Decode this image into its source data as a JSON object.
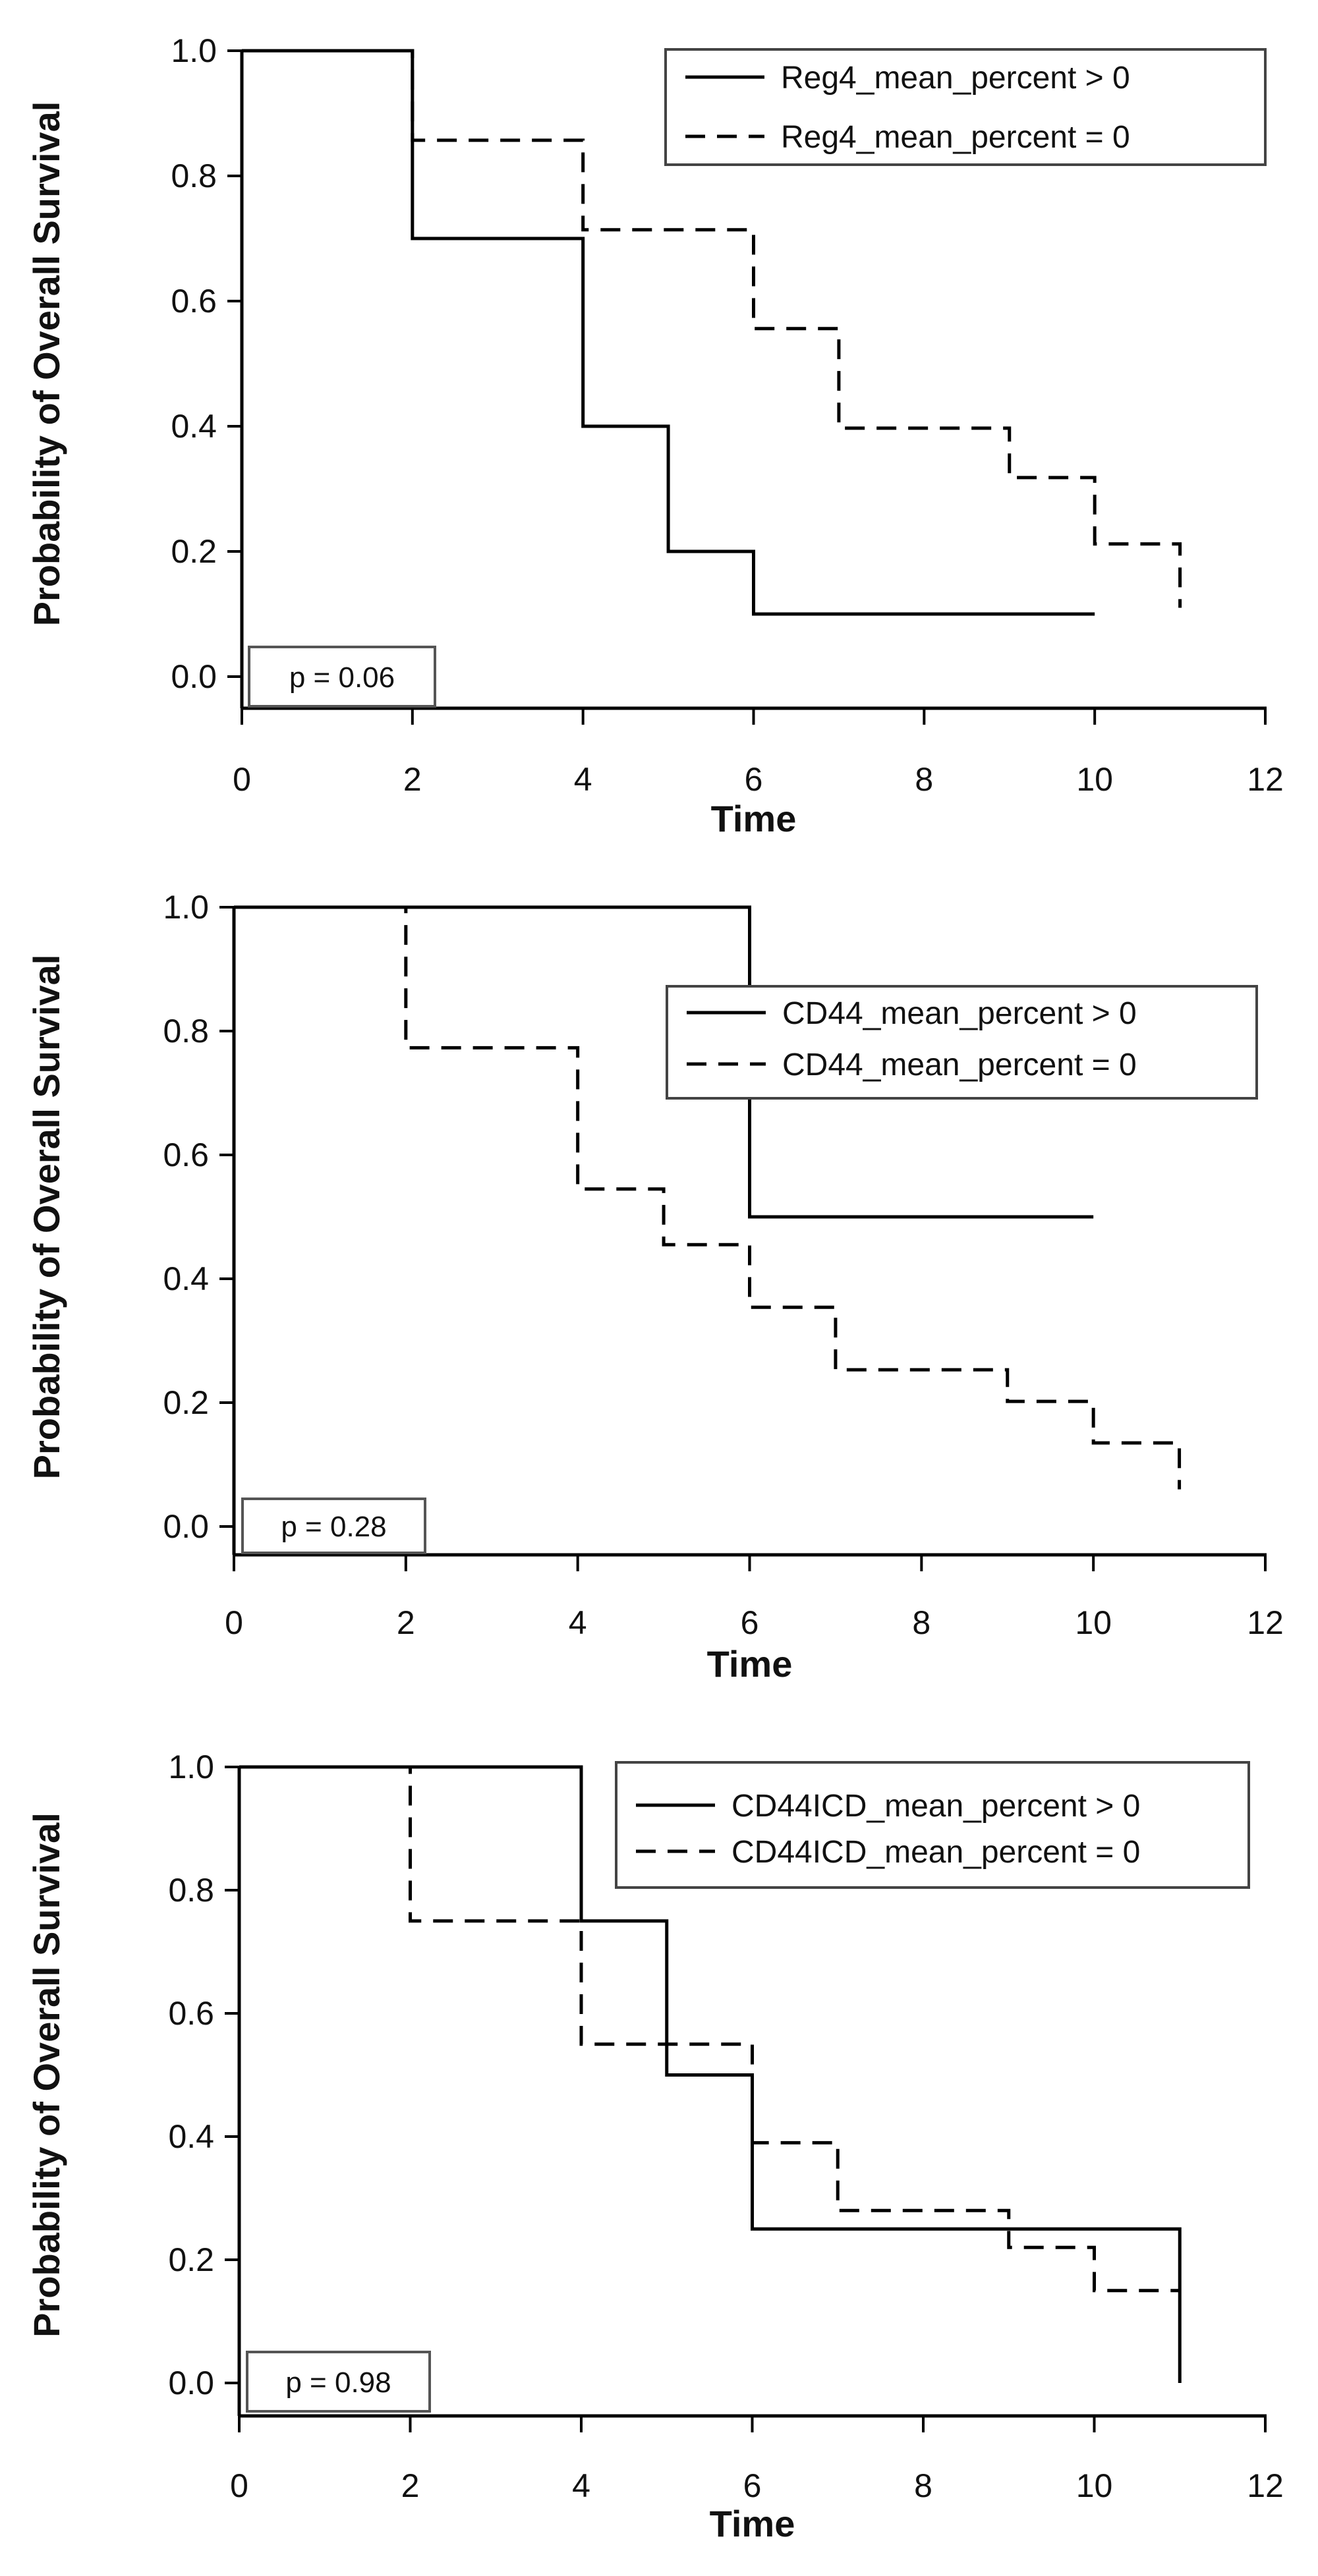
{
  "chart_data": [
    {
      "type": "line",
      "subtype": "kaplan-meier",
      "xlabel": "Time",
      "ylabel": "Probability of Overall Survival",
      "xlim": [
        0,
        12
      ],
      "ylim": [
        0,
        1
      ],
      "x_ticks": [
        "0",
        "2",
        "4",
        "6",
        "8",
        "10",
        "12"
      ],
      "y_ticks": [
        "0.0",
        "0.2",
        "0.4",
        "0.6",
        "0.8",
        "1.0"
      ],
      "grid": false,
      "legend_position": "top-right",
      "annotation": "p = 0.06",
      "series": [
        {
          "name": "Reg4_mean_percent > 0",
          "style": "solid",
          "x": [
            0,
            2,
            4,
            5,
            6,
            10
          ],
          "y": [
            1.0,
            0.7,
            0.4,
            0.2,
            0.1,
            0.1
          ]
        },
        {
          "name": "Reg4_mean_percent = 0",
          "style": "dashed",
          "x": [
            0,
            2,
            4,
            6,
            7,
            9,
            10,
            11
          ],
          "y": [
            1.0,
            0.857,
            0.714,
            0.556,
            0.397,
            0.318,
            0.212,
            0.11
          ]
        }
      ]
    },
    {
      "type": "line",
      "subtype": "kaplan-meier",
      "xlabel": "Time",
      "ylabel": "Probability of Overall Survival",
      "xlim": [
        0,
        12
      ],
      "ylim": [
        0,
        1
      ],
      "x_ticks": [
        "0",
        "2",
        "4",
        "6",
        "8",
        "10",
        "12"
      ],
      "y_ticks": [
        "0.0",
        "0.2",
        "0.4",
        "0.6",
        "0.8",
        "1.0"
      ],
      "grid": false,
      "legend_position": "top-right",
      "annotation": "p = 0.28",
      "series": [
        {
          "name": "CD44_mean_percent > 0",
          "style": "solid",
          "x": [
            0,
            6,
            10
          ],
          "y": [
            1.0,
            0.5,
            0.5
          ]
        },
        {
          "name": "CD44_mean_percent = 0",
          "style": "dashed",
          "x": [
            0,
            2,
            4,
            5,
            6,
            7,
            9,
            10,
            11
          ],
          "y": [
            1.0,
            0.773,
            0.545,
            0.455,
            0.354,
            0.253,
            0.202,
            0.135,
            0.06
          ]
        }
      ]
    },
    {
      "type": "line",
      "subtype": "kaplan-meier",
      "xlabel": "Time",
      "ylabel": "Probability of Overall Survival",
      "xlim": [
        0,
        12
      ],
      "ylim": [
        0,
        1
      ],
      "x_ticks": [
        "0",
        "2",
        "4",
        "6",
        "8",
        "10",
        "12"
      ],
      "y_ticks": [
        "0.0",
        "0.2",
        "0.4",
        "0.6",
        "0.8",
        "1.0"
      ],
      "grid": false,
      "legend_position": "top-right",
      "annotation": "p = 0.98",
      "series": [
        {
          "name": "CD44ICD_mean_percent > 0",
          "style": "solid",
          "x": [
            0,
            4,
            5,
            6,
            11
          ],
          "y": [
            1.0,
            0.75,
            0.5,
            0.25,
            0.0
          ]
        },
        {
          "name": "CD44ICD_mean_percent = 0",
          "style": "dashed",
          "x": [
            0,
            2,
            4,
            6,
            7,
            9,
            10,
            11
          ],
          "y": [
            1.0,
            0.75,
            0.55,
            0.39,
            0.28,
            0.22,
            0.15,
            0.15
          ]
        }
      ]
    }
  ]
}
